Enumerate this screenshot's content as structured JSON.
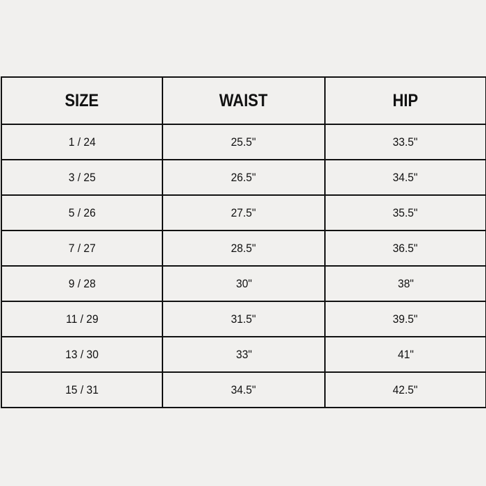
{
  "headers": [
    "SIZE",
    "WAIST",
    "HIP"
  ],
  "rows": [
    [
      "1 / 24",
      "25.5\"",
      "33.5\""
    ],
    [
      "3 / 25",
      "26.5\"",
      "34.5\""
    ],
    [
      "5 / 26",
      "27.5\"",
      "35.5\""
    ],
    [
      "7 / 27",
      "28.5\"",
      "36.5\""
    ],
    [
      "9 / 28",
      "30\"",
      "38\""
    ],
    [
      "11 / 29",
      "31.5\"",
      "39.5\""
    ],
    [
      "13 / 30",
      "33\"",
      "41\""
    ],
    [
      "15 / 31",
      "34.5\"",
      "42.5\""
    ]
  ]
}
